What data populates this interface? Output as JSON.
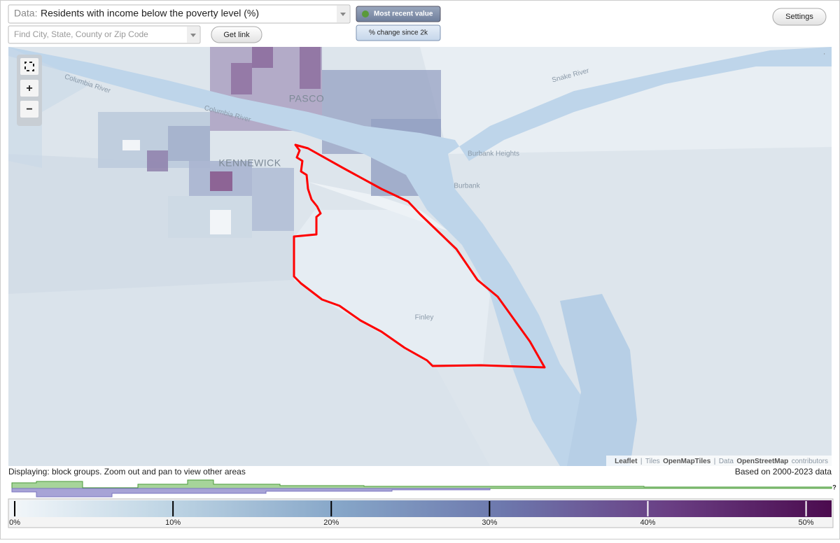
{
  "header": {
    "data_prefix": "Data:",
    "data_select": "Residents with income below the poverty level (%)",
    "search_placeholder": "Find City, State, County or Zip Code",
    "get_link": "Get link",
    "mode_buttons": [
      "Most recent value",
      "% change since 2k"
    ],
    "settings": "Settings"
  },
  "map": {
    "labels": [
      "PASCO",
      "KENNEWICK",
      "Burbank Heights",
      "Burbank",
      "Finley",
      "Snake River",
      "Columbia River"
    ],
    "zoom_in": "+",
    "zoom_out": "−",
    "corner": "·",
    "attribution": [
      "Leaflet",
      "|",
      "Tiles",
      "OpenMapTiles",
      "Data",
      "OpenStreetMap",
      "contributors"
    ]
  },
  "footer": {
    "displaying": "Displaying: block groups. Zoom out and pan to view other areas",
    "based_on": "Based on 2000-2023 data",
    "help": "?"
  },
  "legend": {
    "xlim": [
      -0.4,
      51.7
    ],
    "xticks": [
      {
        "value": 0,
        "label": "0%"
      },
      {
        "value": 10,
        "label": "10%"
      },
      {
        "value": 20,
        "label": "20%"
      },
      {
        "value": 30,
        "label": "30%"
      },
      {
        "value": 40,
        "label": "40%"
      },
      {
        "value": 50,
        "label": "50%"
      }
    ]
  }
}
